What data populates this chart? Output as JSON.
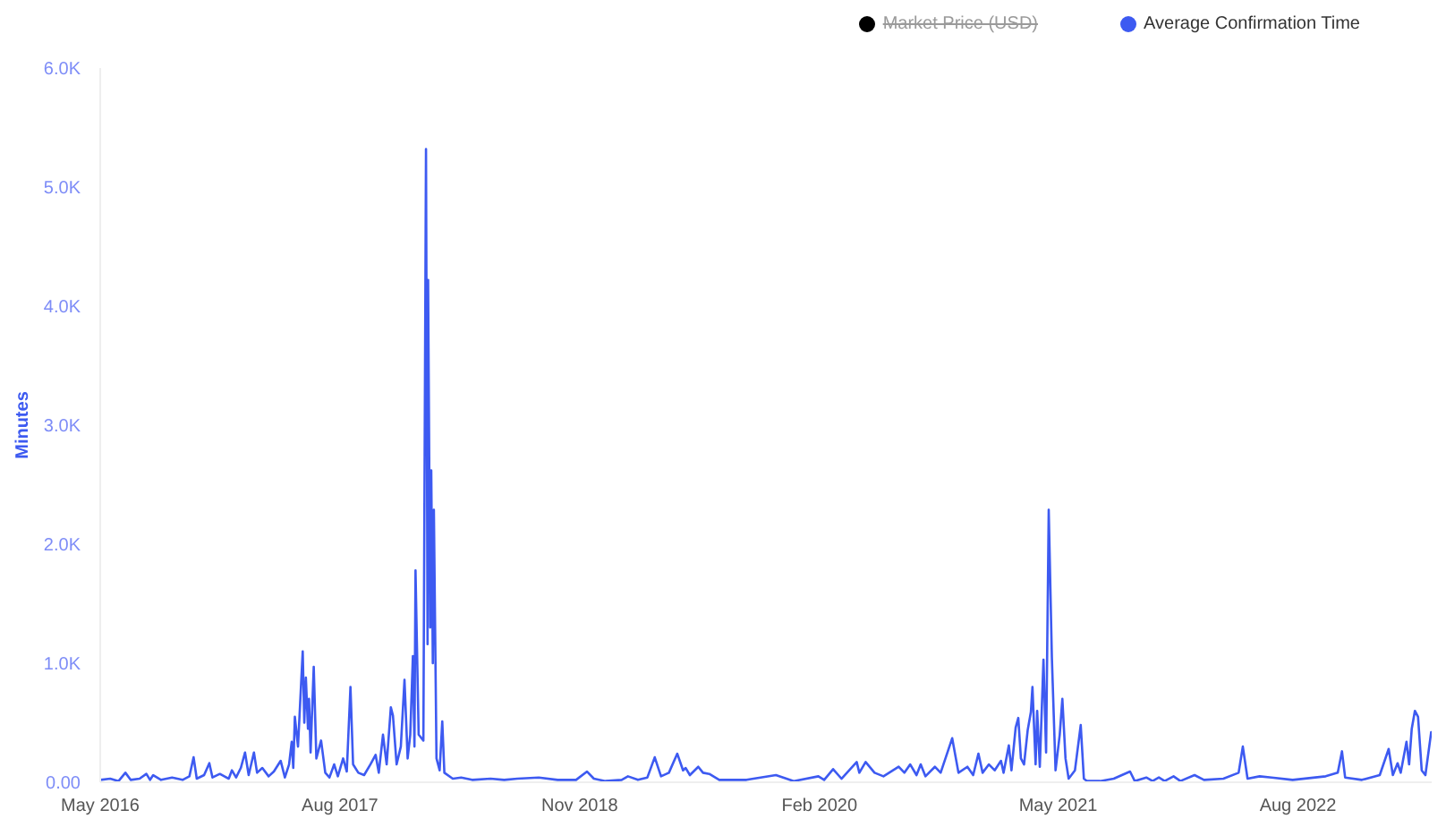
{
  "chart_data": {
    "type": "line",
    "ylabel": "Minutes",
    "legend": "top right",
    "xlim": [
      "2016-05-01",
      "2023-04-13"
    ],
    "xticks": [
      {
        "value": "2016-05",
        "label": "May 2016"
      },
      {
        "value": "2017-08",
        "label": "Aug 2017"
      },
      {
        "value": "2018-11",
        "label": "Nov 2018"
      },
      {
        "value": "2020-02",
        "label": "Feb 2020"
      },
      {
        "value": "2021-05",
        "label": "May 2021"
      },
      {
        "value": "2022-08",
        "label": "Aug 2022"
      }
    ],
    "ylim": [
      0,
      6000
    ],
    "yticks": [
      {
        "value": 0,
        "label": "0.00"
      },
      {
        "value": 1000,
        "label": "1.0K"
      },
      {
        "value": 2000,
        "label": "2.0K"
      },
      {
        "value": 3000,
        "label": "3.0K"
      },
      {
        "value": 4000,
        "label": "4.0K"
      },
      {
        "value": 5000,
        "label": "5.0K"
      },
      {
        "value": 6000,
        "label": "6.0K"
      }
    ],
    "x": [
      "2016-05-01",
      "2016-05-20",
      "2016-06-05",
      "2016-06-18",
      "2016-06-28",
      "2016-07-15",
      "2016-07-28",
      "2016-08-04",
      "2016-08-10",
      "2016-08-25",
      "2016-09-15",
      "2016-10-05",
      "2016-10-18",
      "2016-10-26",
      "2016-11-01",
      "2016-11-15",
      "2016-11-25",
      "2016-12-01",
      "2016-12-15",
      "2017-01-01",
      "2017-01-07",
      "2017-01-15",
      "2017-01-24",
      "2017-02-01",
      "2017-02-08",
      "2017-02-18",
      "2017-02-24",
      "2017-03-06",
      "2017-03-18",
      "2017-03-28",
      "2017-04-10",
      "2017-04-18",
      "2017-04-26",
      "2017-05-01",
      "2017-05-04",
      "2017-05-07",
      "2017-05-13",
      "2017-05-22",
      "2017-05-25",
      "2017-05-28",
      "2017-06-01",
      "2017-06-03",
      "2017-06-06",
      "2017-06-12",
      "2017-06-17",
      "2017-06-26",
      "2017-07-04",
      "2017-07-12",
      "2017-07-21",
      "2017-07-28",
      "2017-08-07",
      "2017-08-14",
      "2017-08-21",
      "2017-08-26",
      "2017-09-05",
      "2017-09-16",
      "2017-09-28",
      "2017-10-08",
      "2017-10-14",
      "2017-10-22",
      "2017-10-29",
      "2017-11-06",
      "2017-11-10",
      "2017-11-17",
      "2017-11-25",
      "2017-12-02",
      "2017-12-08",
      "2017-12-13",
      "2017-12-18",
      "2017-12-21",
      "2017-12-23",
      "2017-12-29",
      "2018-01-07",
      "2018-01-12",
      "2018-01-15",
      "2018-01-16",
      "2018-01-18",
      "2018-01-20",
      "2018-01-22",
      "2018-01-25",
      "2018-01-27",
      "2018-02-01",
      "2018-02-07",
      "2018-02-12",
      "2018-02-16",
      "2018-03-04",
      "2018-03-20",
      "2018-04-10",
      "2018-05-15",
      "2018-06-10",
      "2018-07-05",
      "2018-08-15",
      "2018-09-20",
      "2018-10-25",
      "2018-11-15",
      "2018-11-28",
      "2018-12-20",
      "2019-01-20",
      "2019-02-01",
      "2019-02-20",
      "2019-03-10",
      "2019-03-24",
      "2019-04-05",
      "2019-04-20",
      "2019-05-06",
      "2019-05-17",
      "2019-05-22",
      "2019-05-30",
      "2019-06-15",
      "2019-06-24",
      "2019-07-06",
      "2019-07-25",
      "2019-09-15",
      "2019-11-10",
      "2019-12-14",
      "2020-01-30",
      "2020-02-10",
      "2020-02-27",
      "2020-03-14",
      "2020-04-12",
      "2020-04-17",
      "2020-04-29",
      "2020-05-16",
      "2020-06-02",
      "2020-07-01",
      "2020-07-12",
      "2020-07-23",
      "2020-08-04",
      "2020-08-12",
      "2020-08-21",
      "2020-09-08",
      "2020-09-19",
      "2020-10-11",
      "2020-10-23",
      "2020-11-09",
      "2020-11-20",
      "2020-11-30",
      "2020-12-08",
      "2020-12-20",
      "2020-12-31",
      "2021-01-12",
      "2021-01-17",
      "2021-01-27",
      "2021-02-01",
      "2021-02-09",
      "2021-02-14",
      "2021-02-19",
      "2021-02-25",
      "2021-03-04",
      "2021-03-10",
      "2021-03-13",
      "2021-03-19",
      "2021-03-22",
      "2021-03-27",
      "2021-04-03",
      "2021-04-08",
      "2021-04-13",
      "2021-04-19",
      "2021-04-26",
      "2021-05-04",
      "2021-05-09",
      "2021-05-15",
      "2021-05-21",
      "2021-06-02",
      "2021-06-13",
      "2021-06-19",
      "2021-06-25",
      "2021-07-20",
      "2021-08-15",
      "2021-09-15",
      "2021-09-24",
      "2021-10-16",
      "2021-10-28",
      "2021-11-09",
      "2021-11-20",
      "2021-12-07",
      "2021-12-20",
      "2022-01-16",
      "2022-02-03",
      "2022-03-12",
      "2022-04-10",
      "2022-04-18",
      "2022-04-27",
      "2022-05-20",
      "2022-06-12",
      "2022-07-22",
      "2022-09-23",
      "2022-10-16",
      "2022-10-24",
      "2022-10-30",
      "2022-12-01",
      "2023-01-04",
      "2023-01-21",
      "2023-01-29",
      "2023-02-07",
      "2023-02-13",
      "2023-02-24",
      "2023-03-01",
      "2023-03-06",
      "2023-03-12",
      "2023-03-18",
      "2023-03-25",
      "2023-04-01",
      "2023-04-12"
    ],
    "series": [
      {
        "name": "Market Price (USD)",
        "color": "#000000",
        "values": [
          null,
          null,
          null,
          null,
          null,
          null,
          null,
          null,
          null,
          null,
          null,
          null,
          null,
          null,
          null,
          null,
          null,
          null,
          null,
          null,
          null,
          null,
          null,
          null,
          null,
          null,
          null,
          null,
          null,
          null,
          null,
          null,
          null,
          null,
          null,
          null,
          null,
          null,
          null,
          null,
          null,
          null,
          null,
          null,
          null,
          null,
          null,
          null,
          null,
          null,
          null,
          null,
          null,
          null,
          null,
          null,
          null,
          null,
          null,
          null,
          null,
          null,
          null,
          null,
          null,
          null,
          null,
          null,
          null,
          null,
          null,
          null,
          null,
          null,
          null,
          null,
          null,
          null,
          null,
          null,
          null,
          null,
          null,
          null,
          null,
          null,
          null,
          null,
          null,
          null,
          null,
          null,
          null,
          null,
          null,
          null,
          null,
          null,
          null,
          null,
          null,
          null,
          null,
          null,
          null,
          null,
          null,
          null,
          null,
          null,
          null,
          null,
          null,
          null,
          null,
          null,
          null,
          null,
          null,
          null,
          null,
          null,
          null,
          null,
          null,
          null,
          null,
          null,
          null,
          null,
          null,
          null,
          null,
          null,
          null,
          null,
          null,
          null,
          null,
          null,
          null,
          null,
          null,
          null,
          null,
          null,
          null,
          null,
          null,
          null,
          null,
          null,
          null,
          null,
          null,
          null,
          null,
          null,
          null,
          null,
          null,
          null,
          null,
          null,
          null,
          null,
          null,
          null,
          null,
          null,
          null,
          null,
          null,
          null,
          null,
          null,
          null,
          null,
          null,
          null,
          null,
          null,
          null,
          null,
          null,
          null,
          null,
          null,
          null,
          null,
          null,
          null,
          null,
          null,
          null,
          null,
          null,
          null,
          null,
          null,
          null,
          null,
          null,
          null
        ]
      },
      {
        "name": "Average Confirmation Time",
        "color": "#3d5af1",
        "values": [
          20,
          30,
          10,
          80,
          20,
          30,
          70,
          20,
          60,
          20,
          40,
          20,
          50,
          210,
          30,
          60,
          160,
          40,
          70,
          30,
          100,
          40,
          120,
          250,
          60,
          250,
          80,
          120,
          50,
          90,
          180,
          40,
          150,
          340,
          120,
          550,
          300,
          1100,
          500,
          880,
          450,
          700,
          250,
          970,
          200,
          350,
          80,
          40,
          150,
          50,
          200,
          90,
          800,
          150,
          80,
          60,
          150,
          230,
          80,
          400,
          150,
          630,
          560,
          150,
          300,
          860,
          200,
          400,
          1060,
          300,
          1780,
          400,
          350,
          5320,
          1160,
          4220,
          2820,
          1300,
          2620,
          1000,
          2290,
          200,
          100,
          510,
          80,
          30,
          40,
          20,
          30,
          20,
          30,
          40,
          20,
          20,
          90,
          30,
          10,
          20,
          50,
          20,
          40,
          210,
          50,
          80,
          240,
          100,
          120,
          60,
          130,
          80,
          70,
          20,
          20,
          60,
          10,
          50,
          20,
          110,
          30,
          170,
          80,
          170,
          80,
          50,
          130,
          80,
          150,
          60,
          150,
          50,
          130,
          80,
          370,
          80,
          130,
          60,
          240,
          80,
          150,
          100,
          180,
          80,
          310,
          100,
          460,
          540,
          200,
          150,
          440,
          590,
          800,
          150,
          600,
          130,
          1030,
          250,
          2290,
          1050,
          100,
          400,
          700,
          200,
          30,
          100,
          480,
          30,
          10,
          10,
          30,
          90,
          10,
          40,
          10,
          40,
          10,
          50,
          10,
          60,
          20,
          30,
          80,
          300,
          30,
          50,
          40,
          20,
          50,
          80,
          260,
          40,
          20,
          60,
          280,
          60,
          160,
          80,
          340,
          150,
          450,
          600,
          550,
          100,
          60,
          420
        ]
      }
    ]
  }
}
